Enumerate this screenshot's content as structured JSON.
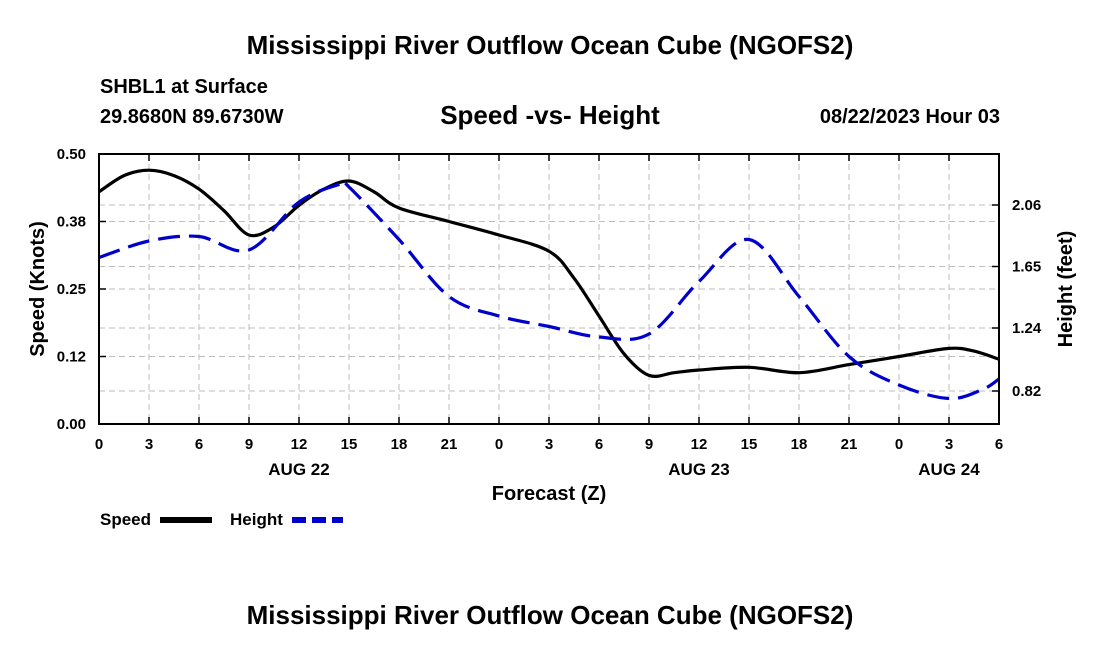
{
  "page_title": "Mississippi River Outflow Ocean Cube (NGOFS2)",
  "page_title_repeat": "Mississippi River Outflow Ocean Cube (NGOFS2)",
  "station": {
    "name": "SHBL1 at Surface",
    "coords": "29.8680N  89.6730W",
    "timestamp": "08/22/2023 Hour 03"
  },
  "chart_data": {
    "type": "line",
    "title": "Speed -vs- Height",
    "xlabel": "Forecast (Z)",
    "ylabel": "Speed (Knots)",
    "y2label": "Height (feet)",
    "grid": true,
    "legend_position": "bottom-left",
    "x_range": [
      0,
      54
    ],
    "x_ticks": [
      0,
      3,
      6,
      9,
      12,
      15,
      18,
      21,
      24,
      27,
      30,
      33,
      36,
      39,
      42,
      45,
      48,
      51,
      54
    ],
    "x_tick_labels": [
      "0",
      "3",
      "6",
      "9",
      "12",
      "15",
      "18",
      "21",
      "0",
      "3",
      "6",
      "9",
      "12",
      "15",
      "18",
      "21",
      "0",
      "3",
      "6"
    ],
    "day_labels": [
      {
        "text": "AUG 22",
        "x": 12
      },
      {
        "text": "AUG 23",
        "x": 36
      },
      {
        "text": "AUG 24",
        "x": 51
      }
    ],
    "ylim": [
      0,
      0.5
    ],
    "y_ticks": [
      0.0,
      0.125,
      0.25,
      0.375,
      0.5
    ],
    "y_tick_labels": [
      "0.00",
      "0.12",
      "0.25",
      "0.38",
      "0.50"
    ],
    "y2lim": [
      0.6,
      2.4
    ],
    "y2_ticks": [
      0.82,
      1.24,
      1.65,
      2.06
    ],
    "y2_tick_labels": [
      "0.82",
      "1.24",
      "1.65",
      "2.06"
    ],
    "series": [
      {
        "name": "Speed",
        "axis": "left",
        "color": "#000000",
        "dash": "solid",
        "x": [
          0,
          1.5,
          3,
          4.5,
          6,
          7.5,
          9,
          10.5,
          12,
          13.5,
          15,
          16.5,
          18,
          21,
          24,
          27,
          28.5,
          30,
          31.5,
          33,
          34.5,
          36,
          39,
          42,
          45,
          48,
          51,
          52.5,
          54
        ],
        "values": [
          0.43,
          0.46,
          0.47,
          0.46,
          0.435,
          0.395,
          0.35,
          0.365,
          0.405,
          0.435,
          0.45,
          0.43,
          0.4,
          0.375,
          0.35,
          0.32,
          0.27,
          0.2,
          0.13,
          0.09,
          0.095,
          0.1,
          0.105,
          0.095,
          0.11,
          0.125,
          0.14,
          0.135,
          0.12
        ]
      },
      {
        "name": "Height",
        "axis": "right",
        "color": "#0000cc",
        "dash": "dashed",
        "x": [
          0,
          3,
          6,
          9,
          12,
          14.5,
          15,
          18,
          21,
          24,
          27,
          30,
          33,
          36,
          39,
          42,
          45,
          48,
          51,
          53,
          54
        ],
        "values": [
          1.71,
          1.82,
          1.85,
          1.76,
          2.08,
          2.2,
          2.18,
          1.83,
          1.45,
          1.32,
          1.25,
          1.18,
          1.2,
          1.55,
          1.83,
          1.45,
          1.05,
          0.86,
          0.77,
          0.83,
          0.9
        ]
      }
    ]
  }
}
